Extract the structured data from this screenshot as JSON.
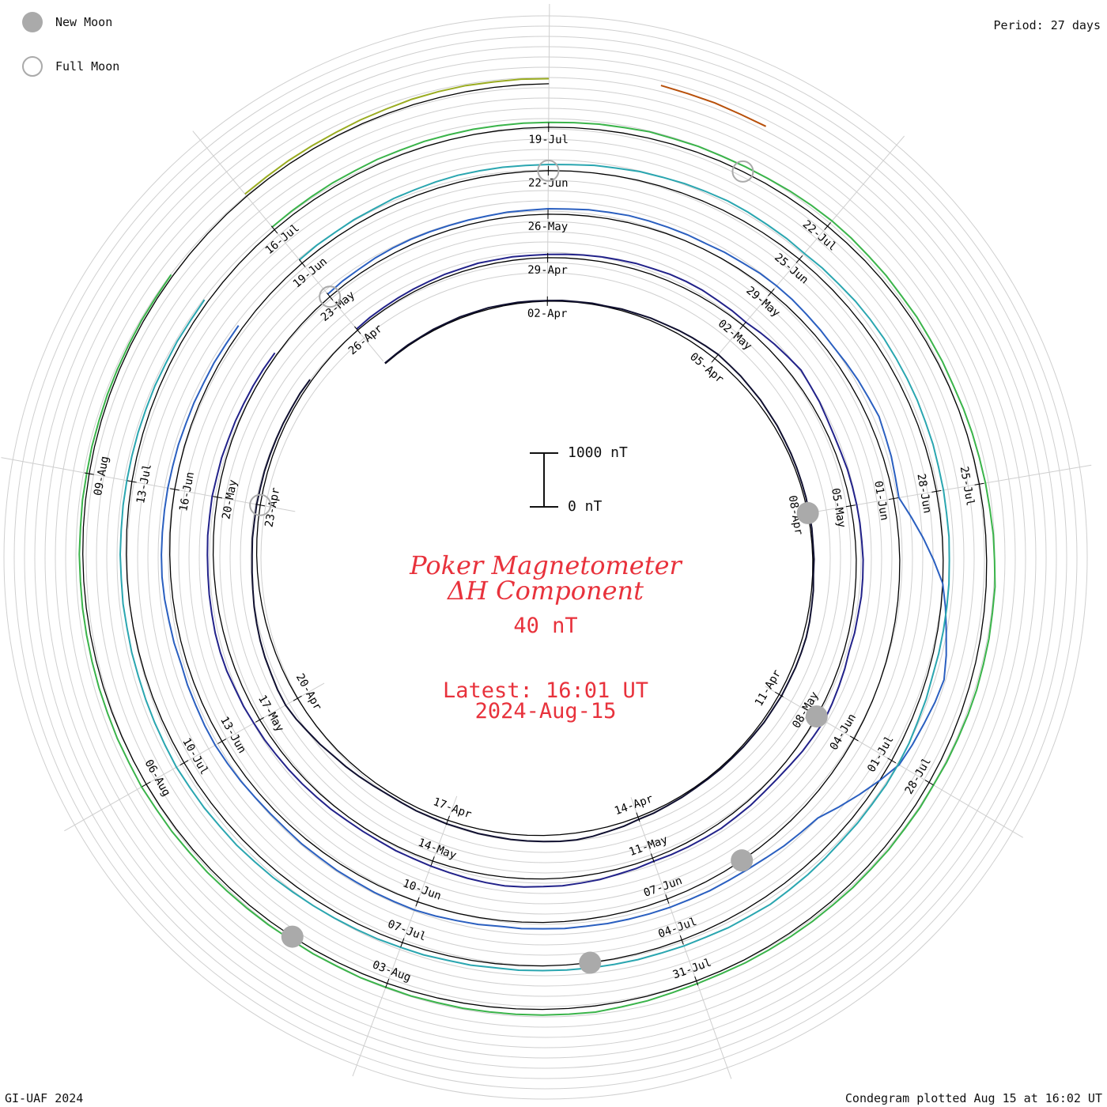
{
  "legend": {
    "new_moon_label": "New Moon",
    "full_moon_label": "Full Moon",
    "new_moon_color": "#aaaaaa",
    "full_moon_color": "#aaaaaa"
  },
  "period_label": "Period: 27 days",
  "footer_left": "GI-UAF 2024",
  "footer_right": "Condegram plotted Aug 15 at 16:02 UT",
  "title_line1": "Poker Magnetometer",
  "title_line2": "ΔH Component",
  "baseline_label": "40 nT",
  "latest_line1": "Latest: 16:01 UT",
  "latest_line2": "2024-Aug-15",
  "scale": {
    "top_label": "1000 nT",
    "bottom_label": "0 nT",
    "value_nT": 1000
  },
  "chart_data": {
    "type": "line",
    "projection": "spiral condegram (one revolution per period)",
    "period_days": 27,
    "x_unit": "days since start of record",
    "y_unit": "nT",
    "start_date": "2024-Mar-30",
    "end_date": "2024-Aug-15",
    "date_tick_labels": [
      "02-Apr",
      "05-Apr",
      "08-Apr",
      "11-Apr",
      "14-Apr",
      "17-Apr",
      "20-Apr",
      "23-Apr",
      "26-Apr",
      "29-Apr",
      "02-May",
      "05-May",
      "08-May",
      "11-May",
      "14-May",
      "17-May",
      "20-May",
      "23-May",
      "26-May",
      "29-May",
      "01-Jun",
      "04-Jun",
      "07-Jun",
      "10-Jun",
      "13-Jun",
      "16-Jun",
      "19-Jun",
      "22-Jun",
      "25-Jun",
      "28-Jun",
      "01-Jul",
      "04-Jul",
      "07-Jul",
      "10-Jul",
      "13-Jul",
      "16-Jul",
      "19-Jul",
      "22-Jul",
      "25-Jul",
      "28-Jul",
      "31-Jul",
      "03-Aug",
      "06-Aug",
      "09-Aug"
    ],
    "series": [
      {
        "color": "#101030",
        "x": [
          0,
          1,
          2,
          3,
          4,
          5,
          6,
          7,
          8,
          9,
          10,
          11,
          12,
          13,
          14,
          15,
          16,
          17,
          18,
          19,
          20,
          21,
          22,
          23,
          24,
          25,
          26
        ],
        "values": [
          40,
          60,
          80,
          40,
          50,
          150,
          300,
          200,
          120,
          80,
          60,
          200,
          150,
          80,
          60,
          150,
          400,
          300,
          200,
          150,
          400,
          800,
          600,
          300,
          200,
          150,
          120
        ]
      },
      {
        "color": "#22228a",
        "x": [
          27,
          28,
          29,
          30,
          31,
          32,
          33,
          34,
          35,
          36,
          37,
          38,
          39,
          40,
          41,
          42,
          43,
          44,
          45,
          46,
          47,
          48,
          49,
          50,
          51,
          52,
          53
        ],
        "values": [
          100,
          150,
          200,
          180,
          300,
          400,
          250,
          600,
          300,
          350,
          400,
          300,
          500,
          250,
          300,
          200,
          400,
          500,
          300,
          200,
          300,
          400,
          500,
          350,
          300,
          200,
          150
        ]
      },
      {
        "color": "#2a5fc0",
        "x": [
          54,
          55,
          56,
          57,
          58,
          59,
          60,
          61,
          62,
          63,
          64,
          65,
          66,
          67,
          68,
          69,
          70,
          71,
          72,
          73,
          74,
          75,
          76,
          77,
          78,
          79,
          80
        ],
        "values": [
          200,
          300,
          250,
          300,
          400,
          350,
          500,
          400,
          600,
          300,
          2500,
          3500,
          3000,
          1000,
          600,
          500,
          400,
          350,
          500,
          400,
          300,
          450,
          350,
          500,
          400,
          300,
          250
        ]
      },
      {
        "color": "#2aa6b0",
        "x": [
          81,
          82,
          83,
          84,
          85,
          86,
          87,
          88,
          89,
          90,
          91,
          92,
          93,
          94,
          95,
          96,
          97,
          98,
          99,
          100,
          101,
          102,
          103,
          104,
          105,
          106,
          107
        ],
        "values": [
          250,
          300,
          400,
          350,
          500,
          600,
          450,
          550,
          500,
          400,
          350,
          300,
          450,
          400,
          500,
          350,
          300,
          250,
          300,
          350,
          450,
          500,
          400,
          350,
          300,
          250,
          200
        ]
      },
      {
        "color": "#3ab44a",
        "x": [
          108,
          109,
          110,
          111,
          112,
          113,
          114,
          115,
          116,
          117,
          118,
          119,
          120,
          121,
          122,
          123,
          124,
          125,
          126,
          127,
          128,
          129,
          130,
          131,
          132,
          133,
          134
        ],
        "values": [
          200,
          250,
          300,
          280,
          350,
          300,
          400,
          300,
          250,
          350,
          500,
          450,
          300,
          250,
          200,
          150,
          350,
          300,
          250,
          200,
          250,
          300,
          250,
          200,
          150,
          120,
          100
        ]
      },
      {
        "color": "#9aac20",
        "x": [
          135,
          136,
          137,
          138
        ],
        "values": [
          150,
          200,
          350,
          300
        ]
      },
      {
        "color": "#b8500a",
        "x": [
          139,
          140
        ],
        "values": [
          600,
          400
        ]
      }
    ],
    "new_moon_dates": [
      "2024-Apr-08",
      "2024-May-08",
      "2024-Jun-06",
      "2024-Jul-05",
      "2024-Aug-04"
    ],
    "full_moon_dates": [
      "2024-Apr-23",
      "2024-May-23",
      "2024-Jun-22",
      "2024-Jul-21"
    ],
    "grid": true
  }
}
